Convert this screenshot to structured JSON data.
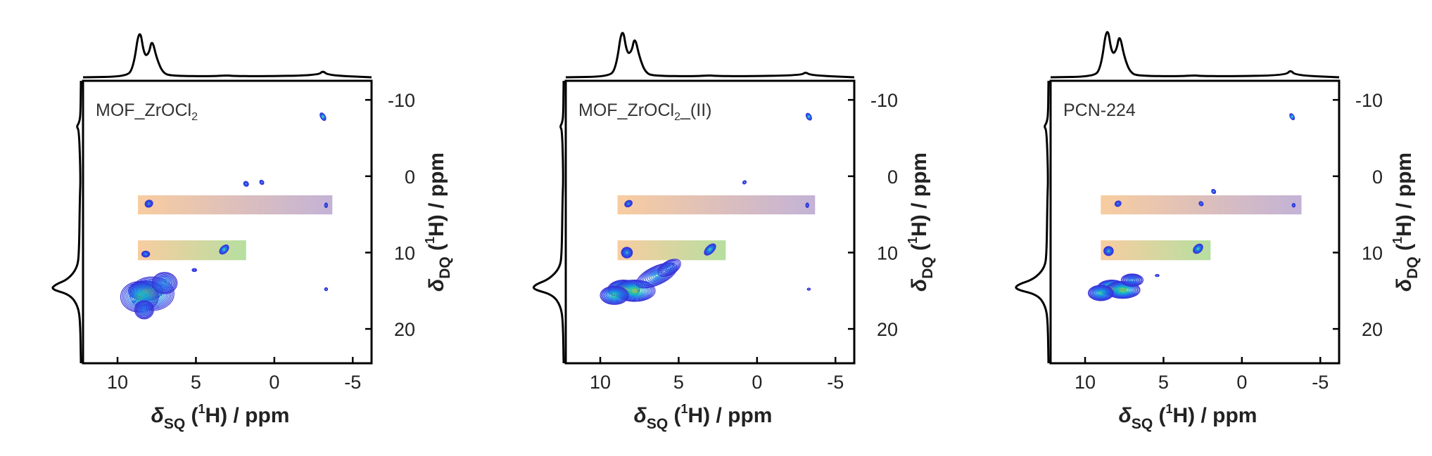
{
  "chart_data": [
    {
      "type": "heatmap",
      "panel_label": "MOF_ZrOCl",
      "panel_label_subscript": "2",
      "panel_label_suffix": "",
      "xlabel": {
        "prefix": "δ",
        "sub": "SQ",
        "mid": " (",
        "sup": "1",
        "suffix": "H) / ppm"
      },
      "ylabel": {
        "prefix": "δ",
        "sub": "DQ",
        "mid": " (",
        "sup": "1",
        "suffix": "H) / ppm"
      },
      "xlim": [
        12.2,
        -6.2
      ],
      "ylim": [
        -12.5,
        24.5
      ],
      "x_axis_reversed": true,
      "y_axis_inverted": true,
      "x_ticks": [
        "10",
        "5",
        "0",
        "-5"
      ],
      "x_tick_values": [
        10,
        5,
        0,
        -5
      ],
      "y_ticks": [
        "-10",
        "0",
        "10",
        "20"
      ],
      "y_tick_values": [
        -10,
        0,
        10,
        20
      ],
      "y_axis_position": "right",
      "projections": "top and left 1D traces",
      "top_projection": {
        "x": [
          12.2,
          9.5,
          9.0,
          8.6,
          8.3,
          8.0,
          7.8,
          7.5,
          7.1,
          6.5,
          4.0,
          3.0,
          2.7,
          1.0,
          -2.8,
          -3.1,
          -3.4,
          -6.2
        ],
        "y": [
          0.0,
          0.01,
          0.12,
          0.78,
          0.32,
          0.35,
          0.58,
          0.28,
          0.06,
          0.02,
          0.015,
          0.03,
          0.02,
          0.015,
          0.03,
          0.1,
          0.03,
          0.0
        ]
      },
      "left_projection": {
        "y": [
          -12.5,
          -8.0,
          -7.0,
          -6.5,
          -6.0,
          0,
          3,
          10,
          12,
          13.5,
          14.2,
          14.8,
          15.5,
          17,
          19,
          24.5
        ],
        "v": [
          0.0,
          0.01,
          0.05,
          0.12,
          0.05,
          0.01,
          0.03,
          0.05,
          0.1,
          0.35,
          0.7,
          0.82,
          0.3,
          0.08,
          0.02,
          0.0
        ]
      },
      "bands": [
        {
          "x_range": [
            8.7,
            -3.7
          ],
          "y_range": [
            2.5,
            5.0
          ],
          "colors": [
            "#f7c48f",
            "#b8a5cf"
          ]
        },
        {
          "x_range": [
            8.7,
            1.8
          ],
          "y_range": [
            8.4,
            11.0
          ],
          "colors": [
            "#f7c48f",
            "#a9d98f"
          ]
        }
      ],
      "peaks": [
        {
          "x": 8.2,
          "y": 15.0,
          "sx": 1.1,
          "sy": 1.3,
          "rot": 0,
          "level": 1.0
        },
        {
          "x": 7.8,
          "y": 15.4,
          "sx": 1.4,
          "sy": 2.2,
          "rot": 0,
          "level": 0.85
        },
        {
          "x": 8.6,
          "y": 15.8,
          "sx": 1.2,
          "sy": 2.0,
          "rot": 0,
          "level": 0.7
        },
        {
          "x": 7.0,
          "y": 14.0,
          "sx": 0.8,
          "sy": 1.4,
          "rot": 0,
          "level": 0.45
        },
        {
          "x": 8.3,
          "y": 17.5,
          "sx": 0.6,
          "sy": 1.2,
          "rot": 0,
          "level": 0.35
        },
        {
          "x": -3.1,
          "y": -7.8,
          "sx": 0.15,
          "sy": 0.55,
          "rot": 30,
          "level": 0.6
        },
        {
          "x": 3.2,
          "y": 9.6,
          "sx": 0.35,
          "sy": 0.45,
          "rot": 45,
          "level": 0.6
        },
        {
          "x": 8.2,
          "y": 10.2,
          "sx": 0.25,
          "sy": 0.4,
          "rot": 0,
          "level": 0.35
        },
        {
          "x": 8.0,
          "y": 3.6,
          "sx": 0.25,
          "sy": 0.45,
          "rot": 30,
          "level": 0.35
        },
        {
          "x": 1.8,
          "y": 1.0,
          "sx": 0.15,
          "sy": 0.35,
          "rot": 40,
          "level": 0.3
        },
        {
          "x": 0.8,
          "y": 0.8,
          "sx": 0.12,
          "sy": 0.3,
          "rot": 40,
          "level": 0.25
        },
        {
          "x": -3.3,
          "y": 3.8,
          "sx": 0.1,
          "sy": 0.3,
          "rot": 0,
          "level": 0.2
        },
        {
          "x": 5.1,
          "y": 12.3,
          "sx": 0.15,
          "sy": 0.2,
          "rot": 0,
          "level": 0.15
        },
        {
          "x": -3.3,
          "y": 14.8,
          "sx": 0.1,
          "sy": 0.2,
          "rot": 0,
          "level": 0.12
        }
      ]
    },
    {
      "type": "heatmap",
      "panel_label": "MOF_ZrOCl",
      "panel_label_subscript": "2",
      "panel_label_suffix": "_(II)",
      "xlabel": {
        "prefix": "δ",
        "sub": "SQ",
        "mid": " (",
        "sup": "1",
        "suffix": "H) / ppm"
      },
      "ylabel": {
        "prefix": "δ",
        "sub": "DQ",
        "mid": " (",
        "sup": "1",
        "suffix": "H) / ppm"
      },
      "xlim": [
        12.2,
        -6.2
      ],
      "ylim": [
        -12.5,
        24.5
      ],
      "x_axis_reversed": true,
      "y_axis_inverted": true,
      "x_ticks": [
        "10",
        "5",
        "0",
        "-5"
      ],
      "x_tick_values": [
        10,
        5,
        0,
        -5
      ],
      "y_ticks": [
        "-10",
        "0",
        "10",
        "20"
      ],
      "y_tick_values": [
        -10,
        0,
        10,
        20
      ],
      "y_axis_position": "right",
      "projections": "top and left 1D traces",
      "top_projection": {
        "x": [
          12.2,
          9.5,
          9.0,
          8.6,
          8.3,
          8.0,
          7.8,
          7.5,
          7.1,
          6.5,
          4.0,
          3.0,
          2.7,
          1.0,
          -2.8,
          -3.1,
          -3.4,
          -6.2
        ],
        "y": [
          0.0,
          0.01,
          0.12,
          0.8,
          0.35,
          0.38,
          0.62,
          0.3,
          0.06,
          0.02,
          0.015,
          0.03,
          0.02,
          0.015,
          0.03,
          0.08,
          0.03,
          0.0
        ]
      },
      "left_projection": {
        "y": [
          -12.5,
          -8.0,
          -7.0,
          -6.5,
          -6.0,
          0,
          3,
          10,
          12,
          13.5,
          14.2,
          14.8,
          15.5,
          17,
          19,
          24.5
        ],
        "v": [
          0.0,
          0.01,
          0.04,
          0.1,
          0.04,
          0.01,
          0.03,
          0.05,
          0.1,
          0.4,
          0.78,
          0.85,
          0.3,
          0.08,
          0.02,
          0.0
        ]
      },
      "bands": [
        {
          "x_range": [
            8.9,
            -3.7
          ],
          "y_range": [
            2.5,
            5.0
          ],
          "colors": [
            "#f7c48f",
            "#b8a5cf"
          ]
        },
        {
          "x_range": [
            8.9,
            2.0
          ],
          "y_range": [
            8.4,
            11.0
          ],
          "colors": [
            "#f7c48f",
            "#a9d98f"
          ]
        }
      ],
      "peaks": [
        {
          "x": 8.5,
          "y": 14.8,
          "sx": 1.0,
          "sy": 1.2,
          "rot": 0,
          "level": 1.0
        },
        {
          "x": 7.8,
          "y": 15.0,
          "sx": 1.3,
          "sy": 1.4,
          "rot": 0,
          "level": 0.85
        },
        {
          "x": 9.1,
          "y": 15.6,
          "sx": 0.9,
          "sy": 1.2,
          "rot": 0,
          "level": 0.7
        },
        {
          "x": 6.4,
          "y": 13.0,
          "sx": 1.4,
          "sy": 1.2,
          "rot": 25,
          "level": 0.5
        },
        {
          "x": 5.6,
          "y": 12.0,
          "sx": 0.8,
          "sy": 0.9,
          "rot": 30,
          "level": 0.3
        },
        {
          "x": 8.3,
          "y": 10.0,
          "sx": 0.35,
          "sy": 0.7,
          "rot": 0,
          "level": 0.45
        },
        {
          "x": 3.0,
          "y": 9.6,
          "sx": 0.45,
          "sy": 0.5,
          "rot": 45,
          "level": 0.6
        },
        {
          "x": -3.3,
          "y": -7.8,
          "sx": 0.15,
          "sy": 0.5,
          "rot": 30,
          "level": 0.55
        },
        {
          "x": 8.2,
          "y": 3.6,
          "sx": 0.25,
          "sy": 0.4,
          "rot": 30,
          "level": 0.35
        },
        {
          "x": 0.8,
          "y": 0.8,
          "sx": 0.12,
          "sy": 0.2,
          "rot": 40,
          "level": 0.2
        },
        {
          "x": -3.2,
          "y": 3.8,
          "sx": 0.1,
          "sy": 0.3,
          "rot": 0,
          "level": 0.18
        },
        {
          "x": -3.3,
          "y": 14.8,
          "sx": 0.1,
          "sy": 0.15,
          "rot": 0,
          "level": 0.1
        }
      ]
    },
    {
      "type": "heatmap",
      "panel_label": "PCN-224",
      "panel_label_subscript": "",
      "panel_label_suffix": "",
      "xlabel": {
        "prefix": "δ",
        "sub": "SQ",
        "mid": " (",
        "sup": "1",
        "suffix": "H) / ppm"
      },
      "ylabel": {
        "prefix": "δ",
        "sub": "DQ",
        "mid": " (",
        "sup": "1",
        "suffix": "H) / ppm"
      },
      "xlim": [
        12.2,
        -6.2
      ],
      "ylim": [
        -12.5,
        24.5
      ],
      "x_axis_reversed": true,
      "y_axis_inverted": true,
      "x_ticks": [
        "10",
        "5",
        "0",
        "-5"
      ],
      "x_tick_values": [
        10,
        5,
        0,
        -5
      ],
      "y_ticks": [
        "-10",
        "0",
        "10",
        "20"
      ],
      "y_tick_values": [
        -10,
        0,
        10,
        20
      ],
      "y_axis_position": "right",
      "projections": "top and left 1D traces",
      "top_projection": {
        "x": [
          12.2,
          9.5,
          9.0,
          8.6,
          8.3,
          8.0,
          7.8,
          7.5,
          7.1,
          6.5,
          4.0,
          3.0,
          2.7,
          1.0,
          -2.8,
          -3.1,
          -3.4,
          -6.2
        ],
        "y": [
          0.0,
          0.01,
          0.12,
          0.82,
          0.34,
          0.4,
          0.66,
          0.3,
          0.06,
          0.02,
          0.015,
          0.03,
          0.02,
          0.015,
          0.03,
          0.11,
          0.03,
          0.0
        ]
      },
      "left_projection": {
        "y": [
          -12.5,
          -8.0,
          -7.0,
          -6.5,
          -6.0,
          0,
          3,
          10,
          12,
          13.5,
          14.2,
          14.8,
          15.5,
          17,
          19,
          24.5
        ],
        "v": [
          0.0,
          0.01,
          0.05,
          0.12,
          0.05,
          0.01,
          0.03,
          0.05,
          0.1,
          0.4,
          0.85,
          0.92,
          0.3,
          0.08,
          0.02,
          0.0
        ]
      },
      "bands": [
        {
          "x_range": [
            9.0,
            -3.8
          ],
          "y_range": [
            2.5,
            5.0
          ],
          "colors": [
            "#f7c48f",
            "#b8a5cf"
          ]
        },
        {
          "x_range": [
            9.0,
            2.0
          ],
          "y_range": [
            8.4,
            11.0
          ],
          "colors": [
            "#f7c48f",
            "#a9d98f"
          ]
        }
      ],
      "peaks": [
        {
          "x": 8.3,
          "y": 14.6,
          "sx": 0.9,
          "sy": 1.0,
          "rot": 0,
          "level": 1.0
        },
        {
          "x": 7.6,
          "y": 14.9,
          "sx": 1.1,
          "sy": 1.1,
          "rot": 0,
          "level": 0.85
        },
        {
          "x": 9.0,
          "y": 15.3,
          "sx": 0.8,
          "sy": 1.0,
          "rot": 0,
          "level": 0.65
        },
        {
          "x": 7.0,
          "y": 13.6,
          "sx": 0.7,
          "sy": 0.8,
          "rot": 0,
          "level": 0.4
        },
        {
          "x": 8.5,
          "y": 9.8,
          "sx": 0.3,
          "sy": 0.6,
          "rot": 0,
          "level": 0.5
        },
        {
          "x": 2.8,
          "y": 9.5,
          "sx": 0.35,
          "sy": 0.5,
          "rot": 45,
          "level": 0.6
        },
        {
          "x": -3.2,
          "y": -7.8,
          "sx": 0.12,
          "sy": 0.45,
          "rot": 30,
          "level": 0.55
        },
        {
          "x": 7.9,
          "y": 3.6,
          "sx": 0.2,
          "sy": 0.35,
          "rot": 30,
          "level": 0.3
        },
        {
          "x": 1.8,
          "y": 2.0,
          "sx": 0.12,
          "sy": 0.3,
          "rot": 40,
          "level": 0.3
        },
        {
          "x": 2.6,
          "y": 3.6,
          "sx": 0.12,
          "sy": 0.3,
          "rot": 40,
          "level": 0.25
        },
        {
          "x": -3.3,
          "y": 3.8,
          "sx": 0.1,
          "sy": 0.25,
          "rot": 0,
          "level": 0.18
        },
        {
          "x": 5.4,
          "y": 13.0,
          "sx": 0.12,
          "sy": 0.15,
          "rot": 0,
          "level": 0.12
        }
      ]
    }
  ]
}
